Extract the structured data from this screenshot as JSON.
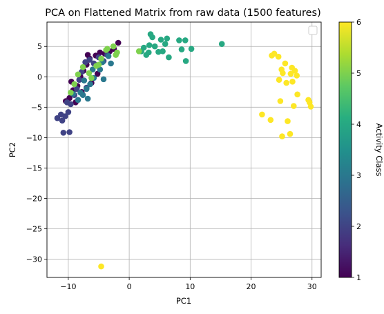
{
  "chart_data": {
    "type": "scatter",
    "title": "PCA on Flattened Matrix from raw data (1500 features)",
    "xlabel": "PC1",
    "ylabel": "PC2",
    "xlim": [
      -13.5,
      31.5
    ],
    "ylim": [
      -33,
      9
    ],
    "xticks": [
      -10,
      0,
      10,
      20,
      30
    ],
    "yticks": [
      5,
      0,
      -5,
      -10,
      -15,
      -20,
      -25,
      -30
    ],
    "grid": true,
    "legend": "top-right, empty",
    "colorbar": {
      "label": "Activity Class",
      "range": [
        1,
        6
      ],
      "ticks": [
        1,
        2,
        3,
        4,
        5,
        6
      ],
      "colormap": "viridis"
    },
    "points": [
      [
        -10.4,
        -4.0,
        1
      ],
      [
        -9.8,
        -3.5,
        1
      ],
      [
        -9.2,
        -2.2,
        1
      ],
      [
        -8.5,
        -1.5,
        1
      ],
      [
        -8.0,
        0.0,
        1
      ],
      [
        -7.5,
        1.0,
        1
      ],
      [
        -7.0,
        2.0,
        1
      ],
      [
        -6.5,
        3.0,
        1
      ],
      [
        -5.5,
        3.5,
        1
      ],
      [
        -4.8,
        4.0,
        1
      ],
      [
        -4.0,
        3.8,
        1
      ],
      [
        -3.2,
        4.2,
        1
      ],
      [
        -2.5,
        4.6,
        1
      ],
      [
        -1.8,
        5.6,
        1
      ],
      [
        -8.8,
        -4.2,
        1
      ],
      [
        -7.8,
        -2.5,
        1
      ],
      [
        -6.2,
        -1.0,
        1
      ],
      [
        -5.2,
        0.5,
        1
      ],
      [
        -9.5,
        -0.8,
        1
      ],
      [
        -6.8,
        3.6,
        1
      ],
      [
        -10.8,
        -9.2,
        2
      ],
      [
        -9.8,
        -9.1,
        2
      ],
      [
        -11.0,
        -7.2,
        2
      ],
      [
        -11.8,
        -6.8,
        2
      ],
      [
        -11.2,
        -6.2,
        2
      ],
      [
        -10.5,
        -6.5,
        2
      ],
      [
        -10.2,
        -4.2,
        2
      ],
      [
        -9.6,
        -4.5,
        2
      ],
      [
        -9.0,
        -3.0,
        2
      ],
      [
        -8.6,
        -2.0,
        2
      ],
      [
        -8.2,
        -0.5,
        2
      ],
      [
        -7.8,
        0.8,
        2
      ],
      [
        -7.2,
        2.4,
        2
      ],
      [
        -6.5,
        2.8,
        2
      ],
      [
        -5.8,
        2.2,
        2
      ],
      [
        -5.0,
        3.2,
        2
      ],
      [
        -4.2,
        2.6,
        2
      ],
      [
        -3.6,
        3.6,
        2
      ],
      [
        -10.0,
        -5.8,
        2
      ],
      [
        -7.0,
        -1.8,
        2
      ],
      [
        -8.4,
        -3.8,
        3
      ],
      [
        -7.6,
        -3.0,
        3
      ],
      [
        -7.0,
        -2.0,
        3
      ],
      [
        -6.4,
        -1.2,
        3
      ],
      [
        -6.8,
        -3.6,
        3
      ],
      [
        -5.8,
        -0.2,
        3
      ],
      [
        -4.8,
        1.2,
        3
      ],
      [
        -4.2,
        -0.4,
        3
      ],
      [
        -3.0,
        2.2,
        3
      ],
      [
        -3.4,
        3.4,
        3
      ],
      [
        -4.4,
        2.4,
        3
      ],
      [
        -7.4,
        -0.6,
        3
      ],
      [
        -6.0,
        1.2,
        3
      ],
      [
        -8.0,
        -2.6,
        3
      ],
      [
        -9.2,
        -2.8,
        3
      ],
      [
        2.0,
        4.2,
        4
      ],
      [
        2.4,
        4.8,
        4
      ],
      [
        2.8,
        3.6,
        4
      ],
      [
        3.2,
        4.0,
        4
      ],
      [
        3.5,
        7.0,
        4
      ],
      [
        3.8,
        6.5,
        4
      ],
      [
        3.3,
        5.2,
        4
      ],
      [
        4.2,
        5.0,
        4
      ],
      [
        4.8,
        4.1,
        4
      ],
      [
        5.5,
        4.2,
        4
      ],
      [
        5.9,
        5.4,
        4
      ],
      [
        6.2,
        6.3,
        4
      ],
      [
        6.5,
        3.2,
        4
      ],
      [
        8.2,
        6.0,
        4
      ],
      [
        8.6,
        4.5,
        4
      ],
      [
        9.2,
        6.0,
        4
      ],
      [
        9.3,
        2.6,
        4
      ],
      [
        10.2,
        4.6,
        4
      ],
      [
        15.2,
        5.4,
        4
      ],
      [
        5.2,
        6.1,
        4
      ],
      [
        -9.6,
        -2.6,
        5
      ],
      [
        -9.0,
        -1.2,
        5
      ],
      [
        -8.4,
        0.4,
        5
      ],
      [
        -7.6,
        1.6,
        5
      ],
      [
        -6.6,
        0.6,
        5
      ],
      [
        -5.4,
        1.8,
        5
      ],
      [
        -4.6,
        3.0,
        5
      ],
      [
        -3.8,
        4.4,
        5
      ],
      [
        -3.6,
        4.6,
        5
      ],
      [
        -2.6,
        5.0,
        5
      ],
      [
        -2.0,
        4.0,
        5
      ],
      [
        -2.2,
        3.6,
        5
      ],
      [
        1.6,
        4.2,
        5
      ],
      [
        -5.0,
        2.0,
        5
      ],
      [
        -6.2,
        -0.2,
        5
      ],
      [
        -4.6,
        -31.2,
        6
      ],
      [
        21.8,
        -6.2,
        6
      ],
      [
        23.2,
        -7.1,
        6
      ],
      [
        23.4,
        3.5,
        6
      ],
      [
        23.8,
        3.8,
        6
      ],
      [
        24.5,
        3.3,
        6
      ],
      [
        25.0,
        1.2,
        6
      ],
      [
        25.2,
        0.6,
        6
      ],
      [
        24.6,
        -0.5,
        6
      ],
      [
        24.8,
        -4.0,
        6
      ],
      [
        25.1,
        -9.8,
        6
      ],
      [
        25.6,
        2.2,
        6
      ],
      [
        25.8,
        -1.0,
        6
      ],
      [
        26.0,
        -7.3,
        6
      ],
      [
        26.4,
        -9.4,
        6
      ],
      [
        26.5,
        0.5,
        6
      ],
      [
        26.8,
        -0.8,
        6
      ],
      [
        26.7,
        1.5,
        6
      ],
      [
        27.0,
        -4.8,
        6
      ],
      [
        27.5,
        0.2,
        6
      ],
      [
        27.6,
        -2.9,
        6
      ],
      [
        29.4,
        -3.8,
        6
      ],
      [
        29.6,
        -4.2,
        6
      ],
      [
        29.8,
        -4.9,
        6
      ],
      [
        27.2,
        1.0,
        6
      ]
    ]
  }
}
